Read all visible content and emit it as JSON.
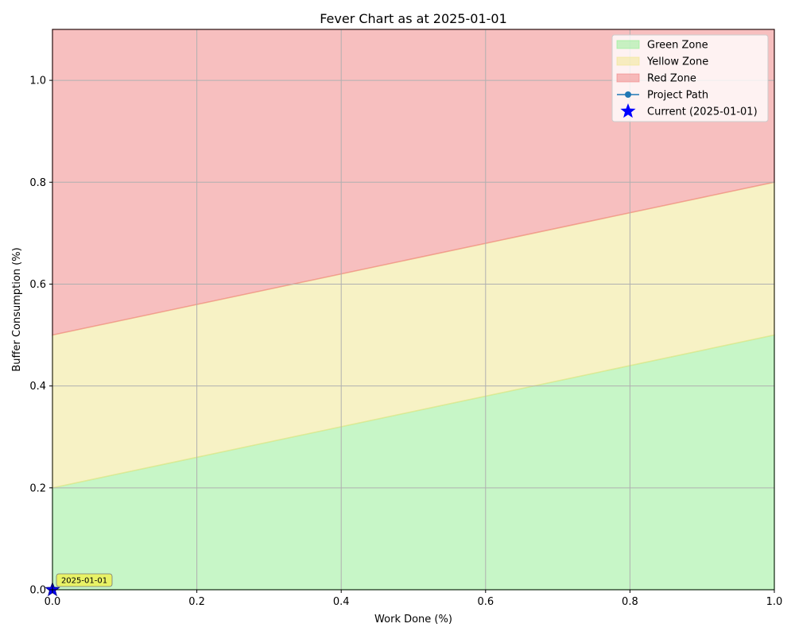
{
  "chart_data": {
    "type": "area",
    "title": "Fever Chart as at 2025-01-01",
    "xlabel": "Work Done (%)",
    "ylabel": "Buffer Consumption (%)",
    "xlim": [
      0,
      1
    ],
    "ylim": [
      0,
      1.1
    ],
    "xticks": [
      "0.0",
      "0.2",
      "0.4",
      "0.6",
      "0.8",
      "1.0"
    ],
    "yticks": [
      "0.0",
      "0.2",
      "0.4",
      "0.6",
      "0.8",
      "1.0"
    ],
    "grid": true,
    "legend_position": "top-right",
    "zones": [
      {
        "name": "Green Zone",
        "color": "#90ee90",
        "lower": [
          [
            0,
            0
          ],
          [
            1,
            0
          ]
        ],
        "upper": [
          [
            0,
            0.2
          ],
          [
            1,
            0.5
          ]
        ]
      },
      {
        "name": "Yellow Zone",
        "color": "#f0e68c",
        "lower": [
          [
            0,
            0.2
          ],
          [
            1,
            0.5
          ]
        ],
        "upper": [
          [
            0,
            0.5
          ],
          [
            1,
            0.8
          ]
        ]
      },
      {
        "name": "Red Zone",
        "color": "#f08080",
        "lower": [
          [
            0,
            0.5
          ],
          [
            1,
            0.8
          ]
        ],
        "upper": [
          [
            0,
            1.1
          ],
          [
            1,
            1.1
          ]
        ]
      }
    ],
    "series": [
      {
        "name": "Project Path",
        "color": "#1f77b4",
        "points": [
          [
            0,
            0
          ]
        ]
      }
    ],
    "current_point": {
      "name": "Current (2025-01-01)",
      "x": 0,
      "y": 0,
      "color": "#0000ff"
    },
    "annotations": [
      {
        "text": "2025-01-01",
        "x": 0,
        "y": 0
      }
    ]
  }
}
